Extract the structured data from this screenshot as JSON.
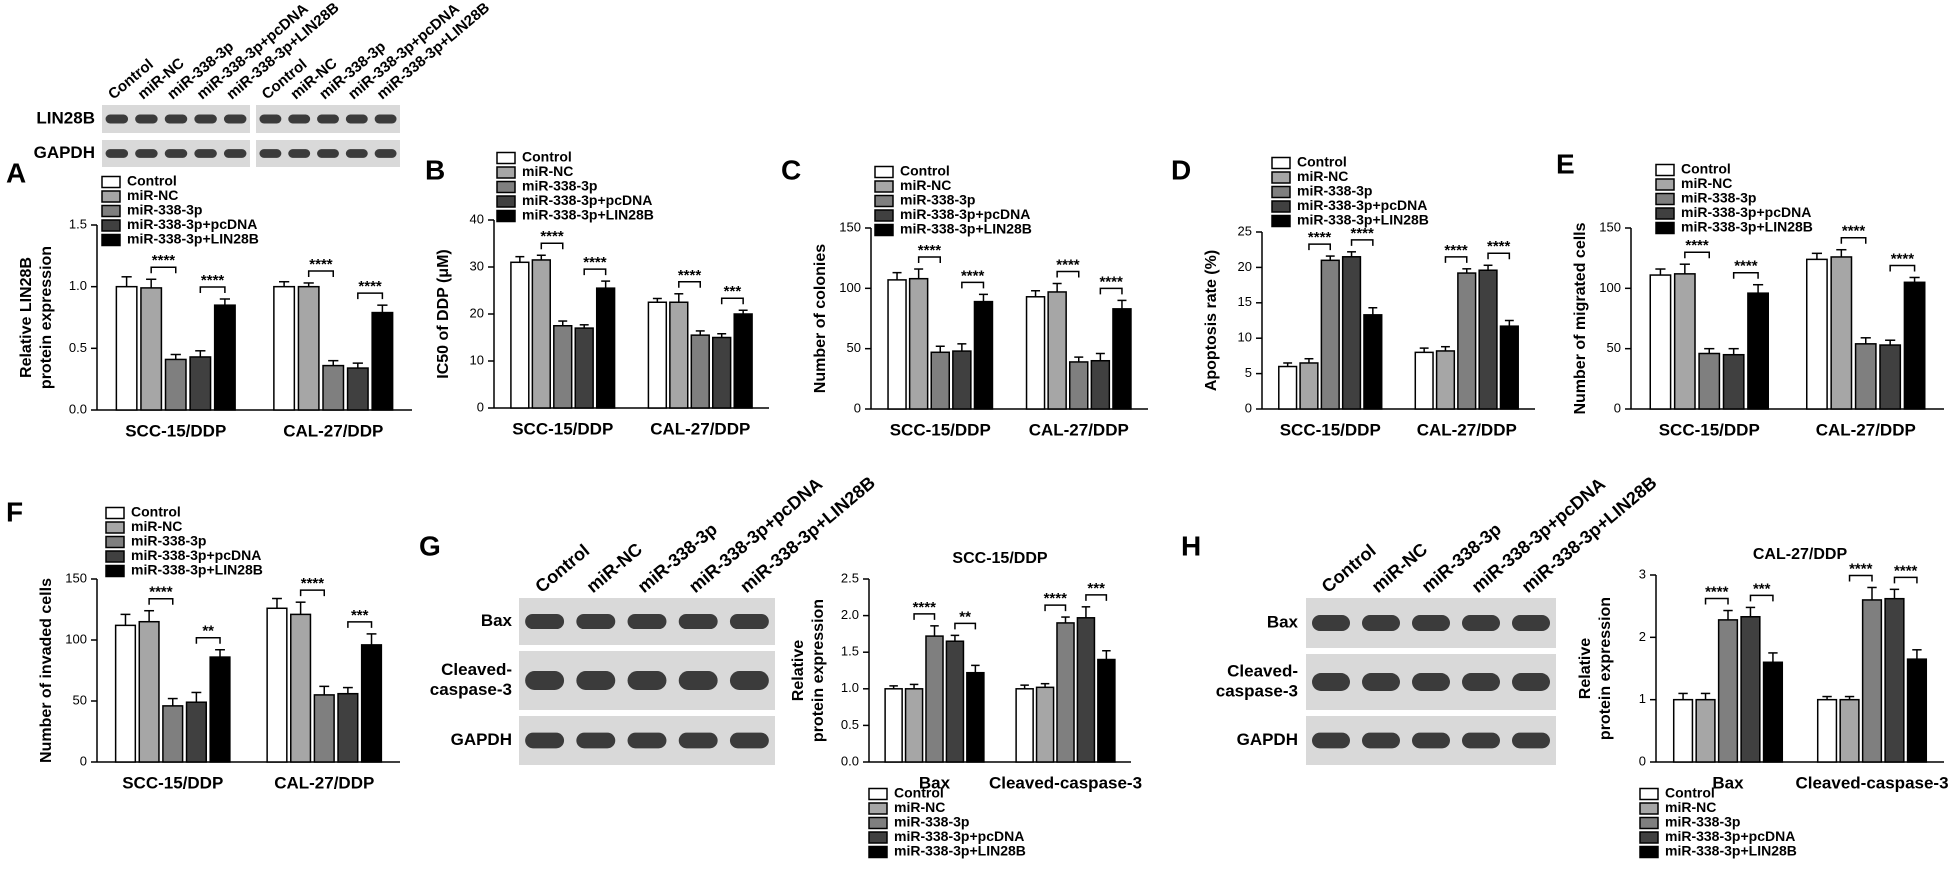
{
  "blots": [
    {
      "lanes": [
        "Control",
        "miR-NC",
        "miR-338-3p",
        "miR-338-3p+pcDNA",
        "miR-338-3p+LIN28B",
        "Control",
        "miR-NC",
        "miR-338-3p",
        "miR-338-3p+pcDNA",
        "miR-338-3p+LIN28B"
      ],
      "rows": [
        [
          "LIN28B"
        ],
        [
          "GAPDH"
        ]
      ]
    },
    {
      "lanes": [
        "Control",
        "miR-NC",
        "miR-338-3p",
        "miR-338-3p+pcDNA",
        "miR-338-3p+LIN28B"
      ],
      "rows": [
        [
          "Bax"
        ],
        [
          "Cleaved-",
          "caspase-3"
        ],
        [
          "GAPDH"
        ]
      ]
    },
    {
      "lanes": [
        "Control",
        "miR-NC",
        "miR-338-3p",
        "miR-338-3p+pcDNA",
        "miR-338-3p+LIN28B"
      ],
      "rows": [
        [
          "Bax"
        ],
        [
          "Cleaved-",
          "caspase-3"
        ],
        [
          "GAPDH"
        ]
      ]
    }
  ],
  "chart_data": [
    {
      "type": "bar",
      "panel": "A",
      "ylabel": [
        "Relative LIN28B",
        "protein expression"
      ],
      "categories": [
        "SCC-15/DDP",
        "CAL-27/DDP"
      ],
      "ylim": [
        0,
        1.5
      ],
      "yticks": [
        {
          "value": 0,
          "label": "0.0"
        },
        0.5,
        {
          "value": 1,
          "label": "1.0"
        },
        1.5
      ],
      "series": [
        {
          "name": "Control",
          "color": "#ffffff",
          "values": [
            1.0,
            1.0
          ],
          "errors": [
            0.08,
            0.04
          ]
        },
        {
          "name": "miR-NC",
          "color": "#a6a6a6",
          "values": [
            0.99,
            1.0
          ],
          "errors": [
            0.07,
            0.03
          ]
        },
        {
          "name": "miR-338-3p",
          "color": "#7f7f7f",
          "values": [
            0.41,
            0.36
          ],
          "errors": [
            0.04,
            0.04
          ]
        },
        {
          "name": "miR-338-3p+pcDNA",
          "color": "#404040",
          "values": [
            0.43,
            0.34
          ],
          "errors": [
            0.05,
            0.04
          ]
        },
        {
          "name": "miR-338-3p+LIN28B",
          "color": "#000000",
          "values": [
            0.85,
            0.79
          ],
          "errors": [
            0.05,
            0.06
          ]
        }
      ],
      "annotations": [
        {
          "text": "****",
          "category": 0,
          "series": [
            1,
            2
          ]
        },
        {
          "text": "****",
          "category": 0,
          "series": [
            3,
            4
          ]
        },
        {
          "text": "****",
          "category": 1,
          "series": [
            1,
            2
          ]
        },
        {
          "text": "****",
          "category": 1,
          "series": [
            3,
            4
          ]
        }
      ]
    },
    {
      "type": "bar",
      "panel": "B",
      "ylabel": "IC50 of DDP (μM)",
      "categories": [
        "SCC-15/DDP",
        "CAL-27/DDP"
      ],
      "ylim": [
        0,
        40
      ],
      "yticks": [
        0,
        10,
        20,
        30,
        40
      ],
      "series": [
        {
          "name": "Control",
          "color": "#ffffff",
          "values": [
            31,
            22.5
          ],
          "errors": [
            1.2,
            0.8
          ]
        },
        {
          "name": "miR-NC",
          "color": "#a6a6a6",
          "values": [
            31.5,
            22.5
          ],
          "errors": [
            1,
            1.8
          ]
        },
        {
          "name": "miR-338-3p",
          "color": "#7f7f7f",
          "values": [
            17.5,
            15.5
          ],
          "errors": [
            1,
            0.9
          ]
        },
        {
          "name": "miR-338-3p+pcDNA",
          "color": "#404040",
          "values": [
            17,
            15
          ],
          "errors": [
            0.7,
            0.8
          ]
        },
        {
          "name": "miR-338-3p+LIN28B",
          "color": "#000000",
          "values": [
            25.5,
            20
          ],
          "errors": [
            1.5,
            0.8
          ]
        }
      ],
      "annotations": [
        {
          "text": "****",
          "category": 0,
          "series": [
            1,
            2
          ]
        },
        {
          "text": "****",
          "category": 0,
          "series": [
            3,
            4
          ]
        },
        {
          "text": "****",
          "category": 1,
          "series": [
            1,
            2
          ]
        },
        {
          "text": "***",
          "category": 1,
          "series": [
            3,
            4
          ]
        }
      ]
    },
    {
      "type": "bar",
      "panel": "C",
      "ylabel": "Number of colonies",
      "categories": [
        "SCC-15/DDP",
        "CAL-27/DDP"
      ],
      "ylim": [
        0,
        150
      ],
      "yticks": [
        0,
        50,
        100,
        150
      ],
      "series": [
        {
          "name": "Control",
          "color": "#ffffff",
          "values": [
            107,
            93
          ],
          "errors": [
            6,
            5
          ]
        },
        {
          "name": "miR-NC",
          "color": "#a6a6a6",
          "values": [
            108,
            97
          ],
          "errors": [
            8,
            7
          ]
        },
        {
          "name": "miR-338-3p",
          "color": "#7f7f7f",
          "values": [
            47,
            39
          ],
          "errors": [
            5,
            4
          ]
        },
        {
          "name": "miR-338-3p+pcDNA",
          "color": "#404040",
          "values": [
            48,
            40
          ],
          "errors": [
            6,
            6
          ]
        },
        {
          "name": "miR-338-3p+LIN28B",
          "color": "#000000",
          "values": [
            89,
            83
          ],
          "errors": [
            6,
            7
          ]
        }
      ],
      "annotations": [
        {
          "text": "****",
          "category": 0,
          "series": [
            1,
            2
          ]
        },
        {
          "text": "****",
          "category": 0,
          "series": [
            3,
            4
          ]
        },
        {
          "text": "****",
          "category": 1,
          "series": [
            1,
            2
          ]
        },
        {
          "text": "****",
          "category": 1,
          "series": [
            3,
            4
          ]
        }
      ]
    },
    {
      "type": "bar",
      "panel": "D",
      "ylabel": "Apoptosis rate (%)",
      "categories": [
        "SCC-15/DDP",
        "CAL-27/DDP"
      ],
      "ylim": [
        0,
        25
      ],
      "yticks": [
        0,
        5,
        10,
        15,
        20,
        25
      ],
      "series": [
        {
          "name": "Control",
          "color": "#ffffff",
          "values": [
            6,
            8
          ],
          "errors": [
            0.5,
            0.6
          ]
        },
        {
          "name": "miR-NC",
          "color": "#a6a6a6",
          "values": [
            6.5,
            8.2
          ],
          "errors": [
            0.6,
            0.6
          ]
        },
        {
          "name": "miR-338-3p",
          "color": "#7f7f7f",
          "values": [
            21,
            19.2
          ],
          "errors": [
            0.6,
            0.6
          ]
        },
        {
          "name": "miR-338-3p+pcDNA",
          "color": "#404040",
          "values": [
            21.5,
            19.6
          ],
          "errors": [
            0.7,
            0.7
          ]
        },
        {
          "name": "miR-338-3p+LIN28B",
          "color": "#000000",
          "values": [
            13.3,
            11.7
          ],
          "errors": [
            1,
            0.8
          ]
        }
      ],
      "annotations": [
        {
          "text": "****",
          "category": 0,
          "series": [
            1,
            2
          ]
        },
        {
          "text": "****",
          "category": 0,
          "series": [
            3,
            4
          ]
        },
        {
          "text": "****",
          "category": 1,
          "series": [
            1,
            2
          ]
        },
        {
          "text": "****",
          "category": 1,
          "series": [
            3,
            4
          ]
        }
      ]
    },
    {
      "type": "bar",
      "panel": "E",
      "ylabel": "Number of migrated cells",
      "categories": [
        "SCC-15/DDP",
        "CAL-27/DDP"
      ],
      "ylim": [
        0,
        150
      ],
      "yticks": [
        0,
        50,
        100,
        150
      ],
      "series": [
        {
          "name": "Control",
          "color": "#ffffff",
          "values": [
            111,
            124
          ],
          "errors": [
            5,
            5
          ]
        },
        {
          "name": "miR-NC",
          "color": "#a6a6a6",
          "values": [
            112,
            126
          ],
          "errors": [
            8,
            6
          ]
        },
        {
          "name": "miR-338-3p",
          "color": "#7f7f7f",
          "values": [
            46,
            54
          ],
          "errors": [
            4,
            5
          ]
        },
        {
          "name": "miR-338-3p+pcDNA",
          "color": "#404040",
          "values": [
            45,
            53
          ],
          "errors": [
            5,
            4
          ]
        },
        {
          "name": "miR-338-3p+LIN28B",
          "color": "#000000",
          "values": [
            96,
            105
          ],
          "errors": [
            7,
            4
          ]
        }
      ],
      "annotations": [
        {
          "text": "****",
          "category": 0,
          "series": [
            1,
            2
          ]
        },
        {
          "text": "****",
          "category": 0,
          "series": [
            3,
            4
          ]
        },
        {
          "text": "****",
          "category": 1,
          "series": [
            1,
            2
          ]
        },
        {
          "text": "****",
          "category": 1,
          "series": [
            3,
            4
          ]
        }
      ]
    },
    {
      "type": "bar",
      "panel": "F",
      "ylabel": "Number of invaded cells",
      "categories": [
        "SCC-15/DDP",
        "CAL-27/DDP"
      ],
      "ylim": [
        0,
        150
      ],
      "yticks": [
        0,
        50,
        100,
        150
      ],
      "series": [
        {
          "name": "Control",
          "color": "#ffffff",
          "values": [
            112,
            126
          ],
          "errors": [
            9,
            8
          ]
        },
        {
          "name": "miR-NC",
          "color": "#a6a6a6",
          "values": [
            115,
            121
          ],
          "errors": [
            9,
            10
          ]
        },
        {
          "name": "miR-338-3p",
          "color": "#7f7f7f",
          "values": [
            46,
            55
          ],
          "errors": [
            6,
            7
          ]
        },
        {
          "name": "miR-338-3p+pcDNA",
          "color": "#404040",
          "values": [
            49,
            56
          ],
          "errors": [
            8,
            5
          ]
        },
        {
          "name": "miR-338-3p+LIN28B",
          "color": "#000000",
          "values": [
            86,
            96
          ],
          "errors": [
            6,
            9
          ]
        }
      ],
      "annotations": [
        {
          "text": "****",
          "category": 0,
          "series": [
            1,
            2
          ]
        },
        {
          "text": "**",
          "category": 0,
          "series": [
            3,
            4
          ]
        },
        {
          "text": "****",
          "category": 1,
          "series": [
            1,
            2
          ]
        },
        {
          "text": "***",
          "category": 1,
          "series": [
            3,
            4
          ]
        }
      ]
    },
    {
      "type": "bar",
      "panel": "G",
      "title": "SCC-15/DDP",
      "ylabel": [
        "Relative",
        "protein expression"
      ],
      "categories": [
        "Bax",
        "Cleaved-caspase-3"
      ],
      "ylim": [
        0,
        2.5
      ],
      "yticks": [
        {
          "value": 0,
          "label": "0.0"
        },
        0.5,
        {
          "value": 1,
          "label": "1.0"
        },
        1.5,
        {
          "value": 2,
          "label": "2.0"
        },
        2.5
      ],
      "series": [
        {
          "name": "Control",
          "color": "#ffffff",
          "values": [
            1.0,
            1.0
          ],
          "errors": [
            0.04,
            0.05
          ]
        },
        {
          "name": "miR-NC",
          "color": "#a6a6a6",
          "values": [
            1.0,
            1.02
          ],
          "errors": [
            0.06,
            0.05
          ]
        },
        {
          "name": "miR-338-3p",
          "color": "#7f7f7f",
          "values": [
            1.72,
            1.9
          ],
          "errors": [
            0.14,
            0.08
          ]
        },
        {
          "name": "miR-338-3p+pcDNA",
          "color": "#404040",
          "values": [
            1.65,
            1.97
          ],
          "errors": [
            0.08,
            0.15
          ]
        },
        {
          "name": "miR-338-3p+LIN28B",
          "color": "#000000",
          "values": [
            1.22,
            1.4
          ],
          "errors": [
            0.1,
            0.12
          ]
        }
      ],
      "annotations": [
        {
          "text": "****",
          "category": 0,
          "series": [
            1,
            2
          ]
        },
        {
          "text": "**",
          "category": 0,
          "series": [
            3,
            4
          ]
        },
        {
          "text": "****",
          "category": 1,
          "series": [
            1,
            2
          ]
        },
        {
          "text": "***",
          "category": 1,
          "series": [
            3,
            4
          ]
        }
      ]
    },
    {
      "type": "bar",
      "panel": "H",
      "title": "CAL-27/DDP",
      "ylabel": [
        "Relative",
        "protein expression"
      ],
      "categories": [
        "Bax",
        "Cleaved-caspase-3"
      ],
      "ylim": [
        0,
        3
      ],
      "yticks": [
        0,
        1,
        2,
        3
      ],
      "series": [
        {
          "name": "Control",
          "color": "#ffffff",
          "values": [
            1.0,
            1.0
          ],
          "errors": [
            0.1,
            0.05
          ]
        },
        {
          "name": "miR-NC",
          "color": "#a6a6a6",
          "values": [
            1.0,
            1.0
          ],
          "errors": [
            0.1,
            0.05
          ]
        },
        {
          "name": "miR-338-3p",
          "color": "#7f7f7f",
          "values": [
            2.28,
            2.6
          ],
          "errors": [
            0.15,
            0.2
          ]
        },
        {
          "name": "miR-338-3p+pcDNA",
          "color": "#404040",
          "values": [
            2.33,
            2.62
          ],
          "errors": [
            0.15,
            0.15
          ]
        },
        {
          "name": "miR-338-3p+LIN28B",
          "color": "#000000",
          "values": [
            1.6,
            1.65
          ],
          "errors": [
            0.15,
            0.15
          ]
        }
      ],
      "annotations": [
        {
          "text": "****",
          "category": 0,
          "series": [
            1,
            2
          ]
        },
        {
          "text": "***",
          "category": 0,
          "series": [
            3,
            4
          ]
        },
        {
          "text": "****",
          "category": 1,
          "series": [
            1,
            2
          ]
        },
        {
          "text": "****",
          "category": 1,
          "series": [
            3,
            4
          ]
        }
      ]
    }
  ]
}
